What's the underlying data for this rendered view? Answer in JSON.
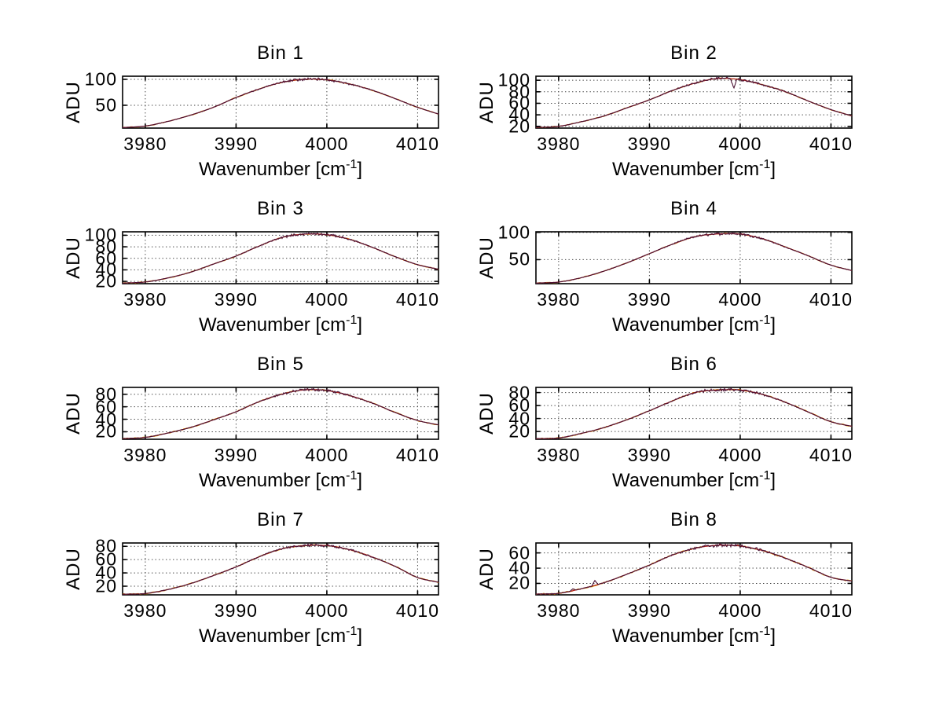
{
  "figure": {
    "background": "#ffffff",
    "text_color": "#000000"
  },
  "chart_data": {
    "type": "line",
    "layout": "8 subplots in a 4x2 grid, MATLAB-style spectra",
    "xlabel_parts": {
      "main": "Wavenumber [cm",
      "sup": "-1",
      "end": "]"
    },
    "ylabel": "ADU",
    "xlim": [
      3977.5,
      4012.3
    ],
    "xticks": [
      "3980",
      "3990",
      "4000",
      "4010"
    ],
    "grid": "dotted",
    "colors": {
      "data_line": "#4a1133",
      "fit_line": "#b22222",
      "under_line": "#e09a00",
      "grid_line": "#444444",
      "axis": "#000000"
    },
    "anchor_x": [
      3977.5,
      3980,
      3982.5,
      3985,
      3987.5,
      3990,
      3992.5,
      3995,
      3997.5,
      4000,
      4002.5,
      4005,
      4007.5,
      4010,
      4012.3
    ],
    "plots": [
      {
        "title": "Bin 1",
        "yticks": [
          50,
          100
        ],
        "ylim": [
          6,
          106
        ],
        "anchors_y": [
          7,
          10,
          19,
          31,
          46,
          65,
          81,
          94,
          100,
          99,
          91,
          79,
          63,
          46,
          33
        ],
        "spikes": []
      },
      {
        "title": "Bin 2",
        "yticks": [
          20,
          40,
          60,
          80,
          100
        ],
        "ylim": [
          17,
          107
        ],
        "anchors_y": [
          18,
          20,
          28,
          38,
          52,
          66,
          82,
          95,
          103,
          101,
          92,
          80,
          64,
          49,
          38
        ],
        "spikes": [
          {
            "x": 3999.3,
            "y": 86
          }
        ]
      },
      {
        "title": "Bin 3",
        "yticks": [
          20,
          40,
          60,
          80,
          100
        ],
        "ylim": [
          16,
          106
        ],
        "anchors_y": [
          17,
          19,
          26,
          36,
          50,
          64,
          81,
          96,
          102,
          101,
          93,
          79,
          63,
          49,
          41
        ],
        "spikes": []
      },
      {
        "title": "Bin 4",
        "yticks": [
          50,
          100
        ],
        "ylim": [
          6,
          101
        ],
        "anchors_y": [
          7,
          9,
          17,
          29,
          44,
          61,
          78,
          92,
          97,
          97,
          88,
          73,
          57,
          40,
          30
        ],
        "spikes": []
      },
      {
        "title": "Bin 5",
        "yticks": [
          20,
          40,
          60,
          80
        ],
        "ylim": [
          8,
          91
        ],
        "anchors_y": [
          9,
          11,
          18,
          27,
          39,
          52,
          68,
          80,
          87,
          86,
          78,
          66,
          51,
          38,
          31
        ],
        "spikes": []
      },
      {
        "title": "Bin 6",
        "yticks": [
          20,
          40,
          60,
          80
        ],
        "ylim": [
          8,
          88
        ],
        "anchors_y": [
          9,
          10,
          17,
          26,
          38,
          52,
          67,
          80,
          84,
          84,
          77,
          65,
          50,
          35,
          28
        ],
        "spikes": []
      },
      {
        "title": "Bin 7",
        "yticks": [
          20,
          40,
          60,
          80
        ],
        "ylim": [
          7,
          85
        ],
        "anchors_y": [
          8,
          9,
          15,
          24,
          36,
          49,
          64,
          76,
          81,
          81,
          75,
          64,
          50,
          33,
          26
        ],
        "spikes": []
      },
      {
        "title": "Bin 8",
        "yticks": [
          20,
          40,
          60
        ],
        "ylim": [
          5,
          73
        ],
        "anchors_y": [
          6,
          7,
          13,
          21,
          32,
          44,
          57,
          66,
          70,
          69,
          63,
          53,
          41,
          28,
          23
        ],
        "spikes": [
          {
            "x": 3981.6,
            "y": 13
          },
          {
            "x": 3984.0,
            "y": 24
          }
        ]
      }
    ]
  }
}
